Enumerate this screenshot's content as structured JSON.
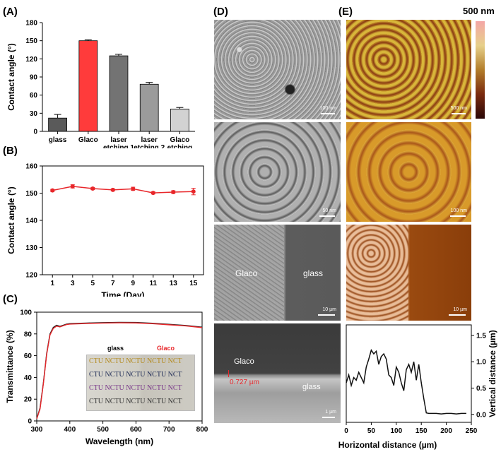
{
  "panels": {
    "A": "(A)",
    "B": "(B)",
    "C": "(C)",
    "D": "(D)",
    "E": "(E)"
  },
  "chart_data": [
    {
      "id": "A",
      "type": "bar",
      "ylabel": "Contact angle (°)",
      "ylim": [
        0,
        180
      ],
      "yticks": [
        0,
        30,
        60,
        90,
        120,
        150,
        180
      ],
      "categories": [
        "glass",
        "Glaco",
        "laser etching 1",
        "laser etching 2",
        "Glaco etching"
      ],
      "category_lines": [
        [
          "glass"
        ],
        [
          "Glaco"
        ],
        [
          "laser",
          "etching 1"
        ],
        [
          "laser",
          "etching 2"
        ],
        [
          "Glaco",
          "etching"
        ]
      ],
      "values": [
        22,
        150,
        125,
        78,
        37
      ],
      "errors": [
        6,
        1.5,
        2.5,
        3,
        2.5
      ],
      "colors": [
        "#5a5a5a",
        "#ff3b3b",
        "#737373",
        "#9b9b9b",
        "#d2d2d2"
      ]
    },
    {
      "id": "B",
      "type": "line",
      "xlabel": "Time (Day)",
      "ylabel": "Contact angle (°)",
      "ylim": [
        120,
        160
      ],
      "yticks": [
        120,
        130,
        140,
        150,
        160
      ],
      "xticks": [
        1,
        3,
        5,
        7,
        9,
        11,
        13,
        15
      ],
      "x": [
        1,
        3,
        5,
        7,
        9,
        11,
        13,
        15
      ],
      "values": [
        151,
        152.5,
        151.7,
        151.2,
        151.6,
        150.1,
        150.4,
        150.6
      ],
      "errors": [
        0.4,
        0.6,
        0.4,
        0.4,
        0.6,
        0.4,
        0.5,
        1.2
      ],
      "color": "#e8262a"
    },
    {
      "id": "C",
      "type": "line",
      "xlabel": "Wavelength (nm)",
      "ylabel": "Transmittance (%)",
      "xlim": [
        300,
        800
      ],
      "ylim": [
        0,
        100
      ],
      "xticks": [
        300,
        400,
        500,
        600,
        700,
        800
      ],
      "yticks": [
        0,
        20,
        40,
        60,
        80,
        100
      ],
      "series": [
        {
          "name": "glass",
          "color": "#222222",
          "x": [
            300,
            310,
            320,
            330,
            340,
            350,
            360,
            370,
            380,
            390,
            400,
            450,
            500,
            550,
            600,
            650,
            700,
            750,
            800
          ],
          "values": [
            2,
            12,
            35,
            62,
            80,
            86,
            88,
            87,
            88,
            89,
            89.5,
            90,
            90.4,
            90.6,
            90.5,
            89.8,
            88.8,
            87.8,
            86.2
          ]
        },
        {
          "name": "Glaco",
          "color": "#e8262a",
          "x": [
            300,
            310,
            320,
            330,
            340,
            350,
            360,
            370,
            380,
            390,
            400,
            450,
            500,
            550,
            600,
            650,
            700,
            750,
            800
          ],
          "values": [
            2,
            11,
            34,
            61,
            79,
            85,
            87.2,
            86.4,
            87.5,
            88.6,
            89,
            89.6,
            90,
            90.2,
            90.1,
            89.4,
            88.4,
            87.4,
            85.8
          ]
        }
      ],
      "inset": {
        "label_left": "glass",
        "label_right": "Glaco",
        "text_rows": [
          "CTU NCTU NCTU NCTU NCT",
          "CTU NCTU NCTU NCTU NCT",
          "CTU NCTU NCTU NCTU NCT",
          "CTU NCTU NCTU NCTU NCT"
        ],
        "row_colors": [
          "#c8a020",
          "#1d2a55",
          "#7a3a8a",
          "#333333"
        ]
      }
    },
    {
      "id": "E-profile",
      "type": "line",
      "xlabel": "Horizontal distance (µm)",
      "ylabel": "Vertical distance (µm)",
      "xlim": [
        0,
        250
      ],
      "ylim": [
        -0.15,
        1.7
      ],
      "xticks": [
        0,
        50,
        100,
        150,
        200,
        250
      ],
      "yticks": [
        0.0,
        0.5,
        1.0,
        1.5
      ],
      "ytick_labels": [
        "0.0",
        "0.5",
        "1.0",
        "1.5"
      ],
      "x": [
        0,
        5,
        10,
        15,
        20,
        25,
        30,
        35,
        40,
        45,
        50,
        55,
        60,
        65,
        70,
        75,
        80,
        85,
        90,
        95,
        100,
        105,
        110,
        115,
        120,
        125,
        130,
        135,
        140,
        145,
        150,
        155,
        160,
        165,
        170,
        180,
        190,
        200,
        210,
        220,
        230,
        240
      ],
      "values": [
        0.6,
        0.75,
        0.55,
        0.7,
        0.65,
        0.8,
        0.7,
        0.6,
        0.9,
        1.05,
        1.22,
        1.15,
        1.2,
        0.95,
        1.1,
        1.15,
        1.05,
        0.75,
        0.7,
        0.55,
        0.9,
        0.8,
        0.6,
        0.45,
        0.85,
        0.95,
        0.8,
        1.0,
        0.65,
        0.95,
        0.6,
        0.3,
        0.03,
        0.02,
        0.02,
        0.02,
        0.01,
        0.02,
        0.02,
        0.01,
        0.02,
        0.02
      ],
      "color": "#111111"
    }
  ],
  "sem": {
    "tiles": [
      {
        "scale": "100 nm"
      },
      {
        "scale": "50 nm"
      },
      {
        "scale": "10 µm",
        "left_label": "Glaco",
        "right_label": "glass"
      },
      {
        "scale": "1 µm",
        "top_label": "Glaco",
        "thickness": "0.727 µm",
        "bottom_label": "glass"
      }
    ]
  },
  "afm": {
    "colorbar_label": "500 nm",
    "colorbar_colors": [
      "#f4a6a6",
      "#e7d08a",
      "#b37d2a",
      "#7a2a0e",
      "#2a0808"
    ],
    "tiles": [
      {
        "scale": "500 nm"
      },
      {
        "scale": "100 nm"
      },
      {
        "scale": "10 µm"
      }
    ]
  }
}
